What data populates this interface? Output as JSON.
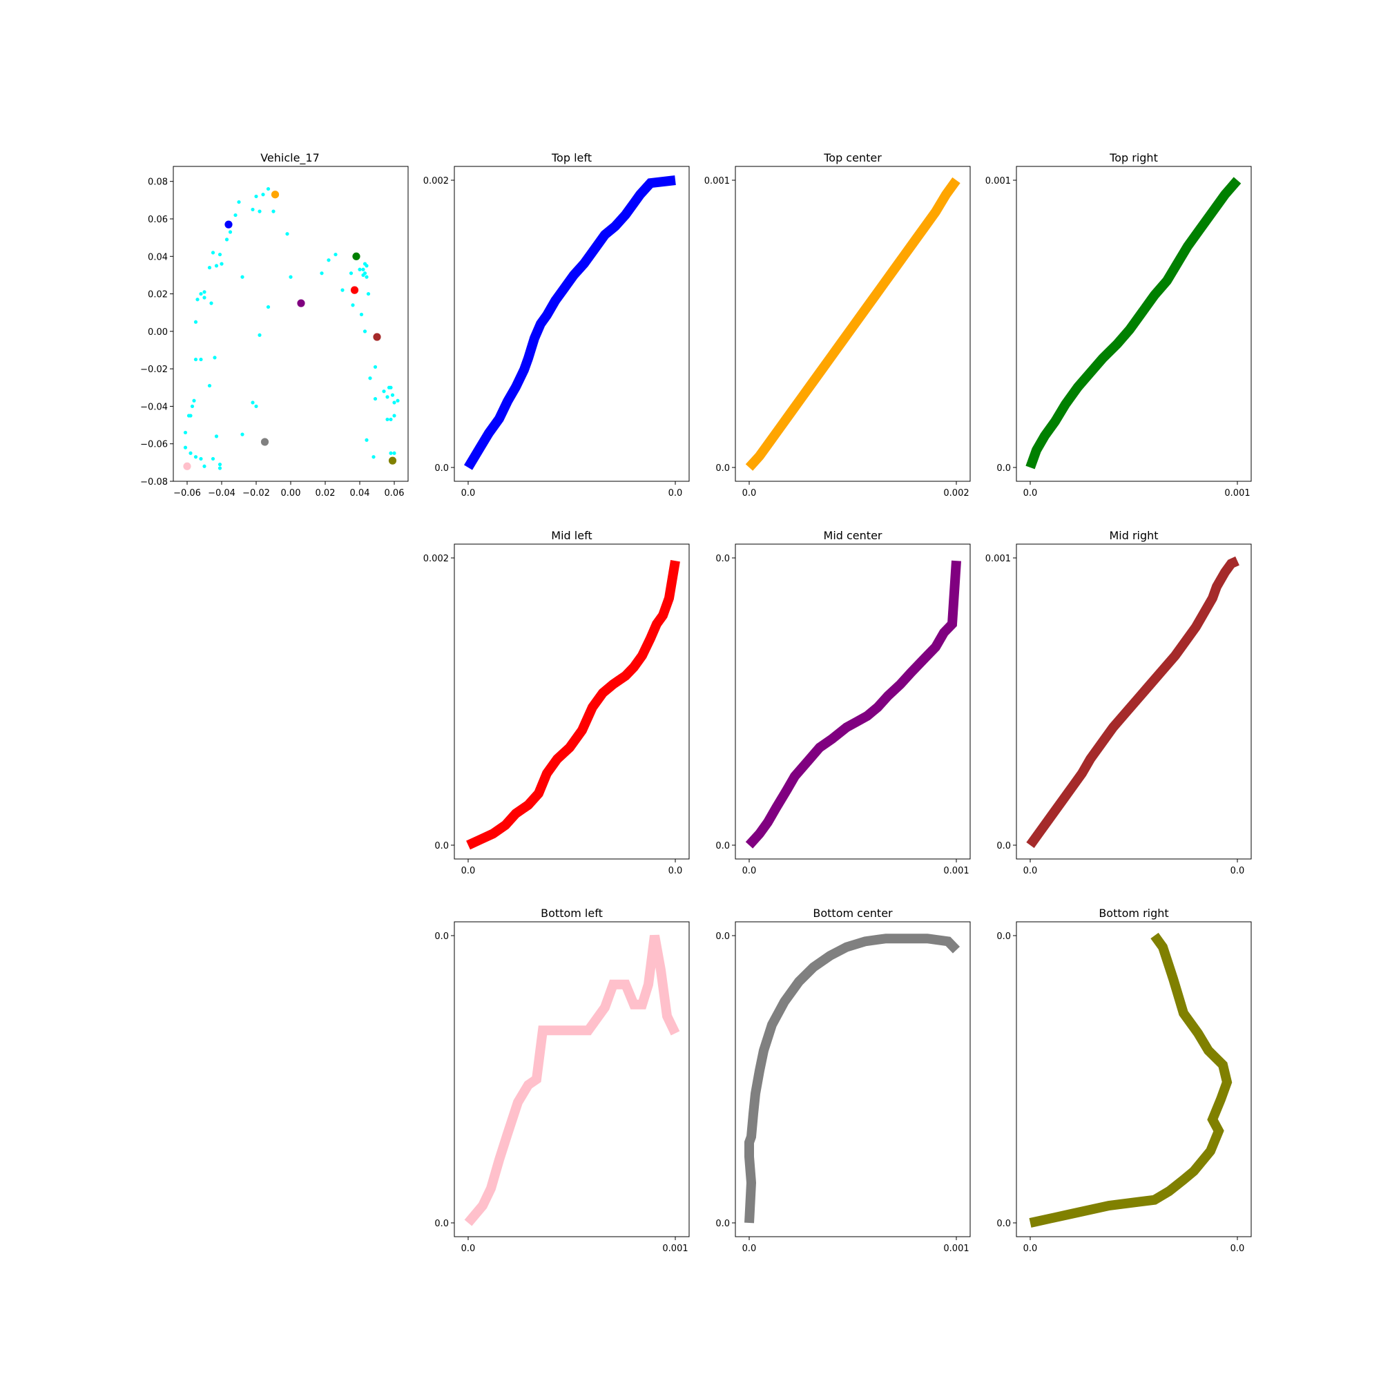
{
  "chart_data": [
    {
      "type": "scatter",
      "title": "Vehicle_17",
      "xlabel": "",
      "ylabel": "",
      "xlim": [
        -0.068,
        0.068
      ],
      "ylim": [
        -0.08,
        0.088
      ],
      "xticks": [
        -0.06,
        -0.04,
        -0.02,
        0.0,
        0.02,
        0.04,
        0.06
      ],
      "xtick_labels": [
        "−0.06",
        "−0.04",
        "−0.02",
        "0.00",
        "0.02",
        "0.04",
        "0.06"
      ],
      "yticks": [
        -0.08,
        -0.06,
        -0.04,
        -0.02,
        0.0,
        0.02,
        0.04,
        0.06,
        0.08
      ],
      "ytick_labels": [
        "−0.08",
        "−0.06",
        "−0.04",
        "−0.02",
        "0.00",
        "0.02",
        "0.04",
        "0.06",
        "0.08"
      ],
      "grid": false,
      "series": [
        {
          "color": "#00ffff",
          "marker_size": "small",
          "points": [
            [
              -0.05,
              0.018
            ],
            [
              -0.046,
              0.015
            ],
            [
              -0.058,
              -0.065
            ],
            [
              -0.052,
              -0.068
            ],
            [
              -0.059,
              -0.045
            ],
            [
              -0.061,
              -0.062
            ],
            [
              -0.055,
              0.005
            ],
            [
              -0.052,
              0.02
            ],
            [
              -0.054,
              0.017
            ],
            [
              -0.05,
              0.021
            ],
            [
              -0.043,
              0.035
            ],
            [
              -0.047,
              0.034
            ],
            [
              -0.045,
              0.042
            ],
            [
              -0.04,
              0.036
            ],
            [
              -0.041,
              0.041
            ],
            [
              -0.037,
              0.049
            ],
            [
              -0.035,
              0.053
            ],
            [
              -0.032,
              0.062
            ],
            [
              -0.03,
              0.069
            ],
            [
              -0.028,
              0.029
            ],
            [
              -0.022,
              0.065
            ],
            [
              -0.02,
              0.072
            ],
            [
              -0.018,
              0.064
            ],
            [
              -0.016,
              0.073
            ],
            [
              -0.013,
              0.076
            ],
            [
              -0.01,
              0.064
            ],
            [
              -0.002,
              0.052
            ],
            [
              0.0,
              0.029
            ],
            [
              -0.013,
              0.013
            ],
            [
              -0.018,
              -0.002
            ],
            [
              -0.02,
              -0.04
            ],
            [
              -0.022,
              -0.038
            ],
            [
              -0.028,
              -0.055
            ],
            [
              -0.043,
              -0.056
            ],
            [
              -0.044,
              -0.014
            ],
            [
              -0.047,
              -0.029
            ],
            [
              -0.052,
              -0.015
            ],
            [
              -0.055,
              -0.015
            ],
            [
              -0.056,
              -0.037
            ],
            [
              -0.057,
              -0.04
            ],
            [
              -0.058,
              -0.045
            ],
            [
              -0.061,
              -0.054
            ],
            [
              -0.055,
              -0.067
            ],
            [
              -0.05,
              -0.072
            ],
            [
              -0.045,
              -0.068
            ],
            [
              -0.041,
              -0.071
            ],
            [
              -0.041,
              -0.073
            ],
            [
              0.018,
              0.031
            ],
            [
              0.022,
              0.038
            ],
            [
              0.026,
              0.041
            ],
            [
              0.03,
              0.022
            ],
            [
              0.035,
              0.031
            ],
            [
              0.036,
              0.014
            ],
            [
              0.04,
              0.033
            ],
            [
              0.042,
              0.033
            ],
            [
              0.043,
              0.036
            ],
            [
              0.044,
              0.035
            ],
            [
              0.043,
              0.031
            ],
            [
              0.044,
              0.029
            ],
            [
              0.042,
              0.03
            ],
            [
              0.045,
              0.02
            ],
            [
              0.041,
              0.009
            ],
            [
              0.043,
              0.0
            ],
            [
              0.046,
              -0.025
            ],
            [
              0.049,
              -0.019
            ],
            [
              0.054,
              -0.032
            ],
            [
              0.057,
              -0.03
            ],
            [
              0.058,
              -0.03
            ],
            [
              0.056,
              -0.035
            ],
            [
              0.059,
              -0.034
            ],
            [
              0.06,
              -0.038
            ],
            [
              0.062,
              -0.037
            ],
            [
              0.049,
              -0.036
            ],
            [
              0.056,
              -0.047
            ],
            [
              0.058,
              -0.047
            ],
            [
              0.06,
              -0.045
            ],
            [
              0.044,
              -0.058
            ],
            [
              0.048,
              -0.067
            ],
            [
              0.058,
              -0.065
            ],
            [
              0.06,
              -0.065
            ]
          ]
        },
        {
          "color": "#0000ff",
          "marker_size": "large",
          "points": [
            [
              -0.036,
              0.057
            ]
          ]
        },
        {
          "color": "#ffa500",
          "marker_size": "large",
          "points": [
            [
              -0.009,
              0.073
            ]
          ]
        },
        {
          "color": "#008000",
          "marker_size": "large",
          "points": [
            [
              0.038,
              0.04
            ]
          ]
        },
        {
          "color": "#ff0000",
          "marker_size": "large",
          "points": [
            [
              0.037,
              0.022
            ]
          ]
        },
        {
          "color": "#800080",
          "marker_size": "large",
          "points": [
            [
              0.006,
              0.015
            ]
          ]
        },
        {
          "color": "#a52a2a",
          "marker_size": "large",
          "points": [
            [
              0.05,
              -0.003
            ]
          ]
        },
        {
          "color": "#ffc0cb",
          "marker_size": "large",
          "points": [
            [
              -0.06,
              -0.072
            ]
          ]
        },
        {
          "color": "#808080",
          "marker_size": "large",
          "points": [
            [
              -0.015,
              -0.059
            ]
          ]
        },
        {
          "color": "#808000",
          "marker_size": "large",
          "points": [
            [
              0.059,
              -0.069
            ]
          ]
        }
      ]
    },
    {
      "type": "line",
      "title": "Top left",
      "xlabel": "",
      "ylabel": "",
      "xlim": [
        0,
        1
      ],
      "ylim": [
        0,
        1
      ],
      "xtick_labels": [
        "0.0",
        "0.0"
      ],
      "ytick_labels": [
        "0.0",
        "0.002"
      ],
      "grid": false,
      "series": [
        {
          "color": "#0000ff",
          "x": [
            0,
            0.05,
            0.1,
            0.15,
            0.19,
            0.23,
            0.27,
            0.29,
            0.32,
            0.35,
            0.38,
            0.42,
            0.46,
            0.51,
            0.56,
            0.6,
            0.66,
            0.71,
            0.76,
            0.8,
            0.83,
            0.88,
            1.0
          ],
          "y": [
            0,
            0.06,
            0.12,
            0.17,
            0.23,
            0.28,
            0.34,
            0.38,
            0.45,
            0.5,
            0.53,
            0.58,
            0.62,
            0.67,
            0.71,
            0.75,
            0.81,
            0.84,
            0.88,
            0.92,
            0.95,
            0.99,
            1.0
          ]
        }
      ]
    },
    {
      "type": "line",
      "title": "Top center",
      "xlabel": "",
      "ylabel": "",
      "xlim": [
        0,
        1
      ],
      "ylim": [
        0,
        1
      ],
      "xtick_labels": [
        "0.0",
        "0.002"
      ],
      "ytick_labels": [
        "0.0",
        "0.001"
      ],
      "grid": false,
      "series": [
        {
          "color": "#ffa500",
          "x": [
            0,
            0.05,
            0.1,
            0.15,
            0.2,
            0.25,
            0.3,
            0.35,
            0.4,
            0.45,
            0.5,
            0.55,
            0.6,
            0.65,
            0.7,
            0.75,
            0.8,
            0.85,
            0.9,
            0.95,
            1.0
          ],
          "y": [
            0,
            0.04,
            0.09,
            0.14,
            0.19,
            0.24,
            0.29,
            0.34,
            0.39,
            0.44,
            0.49,
            0.54,
            0.59,
            0.64,
            0.69,
            0.74,
            0.79,
            0.84,
            0.89,
            0.95,
            1.0
          ]
        }
      ]
    },
    {
      "type": "line",
      "title": "Top right",
      "xlabel": "",
      "ylabel": "",
      "xlim": [
        0,
        1
      ],
      "ylim": [
        0,
        1
      ],
      "xtick_labels": [
        "0.0",
        "0.001"
      ],
      "ytick_labels": [
        "0.0",
        "0.001"
      ],
      "grid": false,
      "series": [
        {
          "color": "#008000",
          "x": [
            0,
            0.03,
            0.07,
            0.12,
            0.17,
            0.23,
            0.29,
            0.35,
            0.42,
            0.48,
            0.54,
            0.6,
            0.66,
            0.71,
            0.76,
            0.82,
            0.88,
            0.94,
            1.0
          ],
          "y": [
            0,
            0.06,
            0.11,
            0.16,
            0.22,
            0.28,
            0.33,
            0.38,
            0.43,
            0.48,
            0.54,
            0.6,
            0.65,
            0.71,
            0.77,
            0.83,
            0.89,
            0.95,
            1.0
          ]
        }
      ]
    },
    {
      "type": "line",
      "title": "Mid left",
      "xlabel": "",
      "ylabel": "",
      "xlim": [
        0,
        1
      ],
      "ylim": [
        0,
        1
      ],
      "xtick_labels": [
        "0.0",
        "0.0"
      ],
      "ytick_labels": [
        "0.0",
        "0.002"
      ],
      "grid": false,
      "series": [
        {
          "color": "#ff0000",
          "x": [
            0,
            0.06,
            0.12,
            0.18,
            0.23,
            0.29,
            0.34,
            0.38,
            0.43,
            0.49,
            0.55,
            0.6,
            0.65,
            0.7,
            0.76,
            0.8,
            0.84,
            0.88,
            0.91,
            0.94,
            0.97,
            1.0
          ],
          "y": [
            0,
            0.02,
            0.04,
            0.07,
            0.11,
            0.14,
            0.18,
            0.25,
            0.3,
            0.34,
            0.4,
            0.48,
            0.53,
            0.56,
            0.59,
            0.62,
            0.66,
            0.72,
            0.77,
            0.8,
            0.86,
            0.99
          ]
        }
      ]
    },
    {
      "type": "line",
      "title": "Mid center",
      "xlabel": "",
      "ylabel": "",
      "xlim": [
        0,
        1
      ],
      "ylim": [
        0,
        1
      ],
      "xtick_labels": [
        "0.0",
        "0.001"
      ],
      "ytick_labels": [
        "0.0",
        "0.0"
      ],
      "grid": false,
      "series": [
        {
          "color": "#800080",
          "x": [
            0,
            0.05,
            0.09,
            0.13,
            0.18,
            0.22,
            0.28,
            0.34,
            0.4,
            0.47,
            0.52,
            0.57,
            0.62,
            0.67,
            0.73,
            0.78,
            0.82,
            0.86,
            0.9,
            0.94,
            0.98,
            1.0
          ],
          "y": [
            0,
            0.04,
            0.08,
            0.13,
            0.19,
            0.24,
            0.29,
            0.34,
            0.37,
            0.41,
            0.43,
            0.45,
            0.48,
            0.52,
            0.56,
            0.6,
            0.63,
            0.66,
            0.69,
            0.74,
            0.77,
            0.99
          ]
        }
      ]
    },
    {
      "type": "line",
      "title": "Mid right",
      "xlabel": "",
      "ylabel": "",
      "xlim": [
        0,
        1
      ],
      "ylim": [
        0,
        1
      ],
      "xtick_labels": [
        "0.0",
        "0.0"
      ],
      "ytick_labels": [
        "0.0",
        "0.001"
      ],
      "grid": false,
      "series": [
        {
          "color": "#a52a2a",
          "x": [
            0,
            0.05,
            0.1,
            0.15,
            0.2,
            0.25,
            0.29,
            0.34,
            0.4,
            0.46,
            0.52,
            0.58,
            0.64,
            0.7,
            0.75,
            0.8,
            0.84,
            0.88,
            0.9,
            0.94,
            0.97,
            1.0
          ],
          "y": [
            0,
            0.05,
            0.1,
            0.15,
            0.2,
            0.25,
            0.3,
            0.35,
            0.41,
            0.46,
            0.51,
            0.56,
            0.61,
            0.66,
            0.71,
            0.76,
            0.81,
            0.86,
            0.9,
            0.95,
            0.98,
            0.99
          ]
        }
      ]
    },
    {
      "type": "line",
      "title": "Bottom left",
      "xlabel": "",
      "ylabel": "",
      "xlim": [
        0,
        1
      ],
      "ylim": [
        0,
        1
      ],
      "xtick_labels": [
        "0.0",
        "0.001"
      ],
      "ytick_labels": [
        "0.0",
        "0.0"
      ],
      "grid": false,
      "series": [
        {
          "color": "#ffc0cb",
          "x": [
            0,
            0.07,
            0.11,
            0.15,
            0.19,
            0.24,
            0.29,
            0.33,
            0.36,
            0.44,
            0.48,
            0.55,
            0.58,
            0.66,
            0.7,
            0.76,
            0.8,
            0.84,
            0.87,
            0.9,
            0.93,
            0.96,
            1.0
          ],
          "y": [
            0,
            0.06,
            0.12,
            0.22,
            0.31,
            0.42,
            0.48,
            0.5,
            0.67,
            0.67,
            0.67,
            0.67,
            0.67,
            0.75,
            0.83,
            0.83,
            0.76,
            0.76,
            0.83,
            1.0,
            0.88,
            0.72,
            0.66
          ]
        }
      ]
    },
    {
      "type": "line",
      "title": "Bottom center",
      "xlabel": "",
      "ylabel": "",
      "xlim": [
        0,
        1
      ],
      "ylim": [
        0,
        1
      ],
      "xtick_labels": [
        "0.0",
        "0.001"
      ],
      "ytick_labels": [
        "0.0",
        "0.0"
      ],
      "grid": false,
      "series": [
        {
          "color": "#808080",
          "x": [
            0,
            0.01,
            0.0,
            0.0,
            0.01,
            0.02,
            0.03,
            0.05,
            0.07,
            0.11,
            0.17,
            0.24,
            0.31,
            0.39,
            0.47,
            0.56,
            0.66,
            0.75,
            0.86,
            0.96,
            1.0
          ],
          "y": [
            0,
            0.14,
            0.23,
            0.28,
            0.3,
            0.38,
            0.45,
            0.53,
            0.6,
            0.69,
            0.77,
            0.84,
            0.89,
            0.93,
            0.96,
            0.98,
            0.99,
            0.99,
            0.99,
            0.98,
            0.95
          ]
        }
      ]
    },
    {
      "type": "line",
      "title": "Bottom right",
      "xlabel": "",
      "ylabel": "",
      "xlim": [
        0,
        1
      ],
      "ylim": [
        0,
        1
      ],
      "xtick_labels": [
        "0.0",
        "0.0"
      ],
      "ytick_labels": [
        "0.0",
        "0.0"
      ],
      "grid": false,
      "series": [
        {
          "color": "#808000",
          "x": [
            0,
            0.19,
            0.38,
            0.6,
            0.67,
            0.74,
            0.79,
            0.87,
            0.91,
            0.88,
            0.92,
            0.95,
            0.93,
            0.86,
            0.81,
            0.74,
            0.69,
            0.64,
            0.6
          ],
          "y": [
            0,
            0.03,
            0.06,
            0.08,
            0.11,
            0.15,
            0.18,
            0.25,
            0.32,
            0.36,
            0.43,
            0.49,
            0.55,
            0.6,
            0.66,
            0.73,
            0.85,
            0.96,
            1.0
          ]
        }
      ]
    }
  ]
}
